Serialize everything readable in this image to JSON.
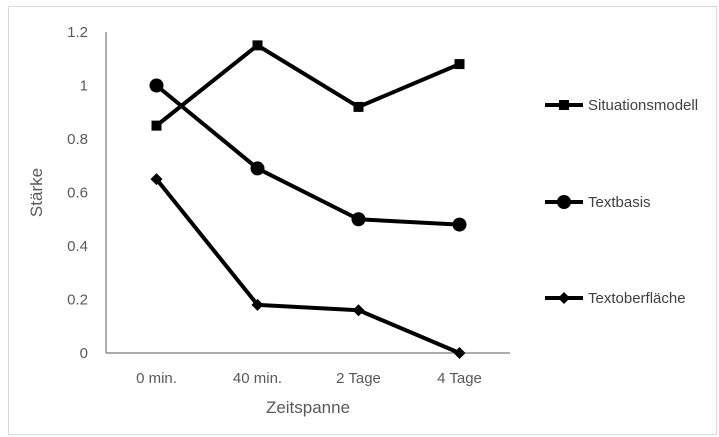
{
  "chart_data": {
    "type": "line",
    "categories": [
      "0 min.",
      "40 min.",
      "2 Tage",
      "4 Tage"
    ],
    "xlabel": "Zeitspanne",
    "ylabel": "Stärke",
    "ylim": [
      0,
      1.2
    ],
    "yticks": [
      0,
      0.2,
      0.4,
      0.6,
      0.8,
      1,
      1.2
    ],
    "ytick_labels": [
      "0",
      "0.2",
      "0.4",
      "0.6",
      "0.8",
      "1",
      "1.2"
    ],
    "grid": false,
    "legend_position": "right",
    "series": [
      {
        "name": "Situationsmodell",
        "marker": "square",
        "values": [
          0.85,
          1.15,
          0.92,
          1.08
        ]
      },
      {
        "name": "Textbasis",
        "marker": "circle",
        "values": [
          1.0,
          0.69,
          0.5,
          0.48
        ]
      },
      {
        "name": "Textoberfläche",
        "marker": "diamond",
        "values": [
          0.65,
          0.18,
          0.16,
          0.0
        ]
      }
    ],
    "colors": {
      "series": "#000000",
      "axis": "#595959",
      "text": "#595959"
    }
  }
}
